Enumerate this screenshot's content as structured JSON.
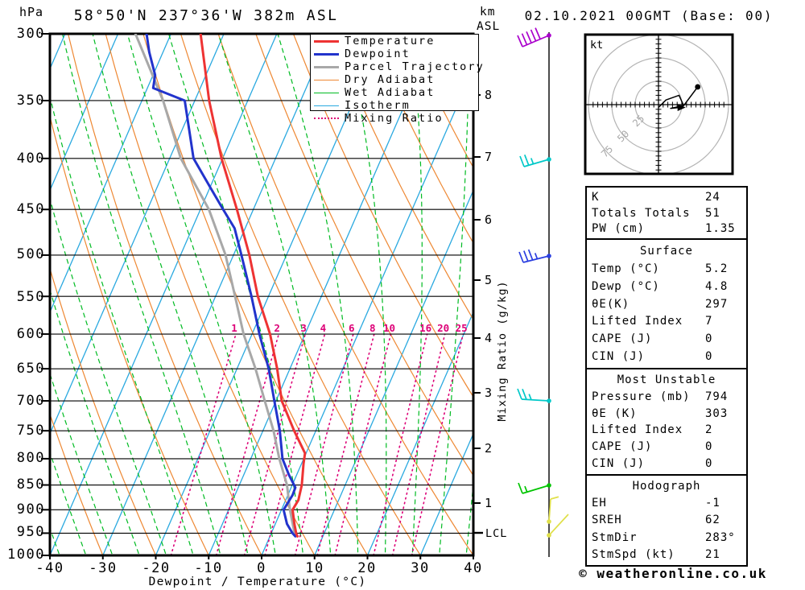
{
  "header": {
    "title": "58°50'N 237°36'W 382m ASL",
    "datetime": "02.10.2021 00GMT (Base: 00)"
  },
  "footer": {
    "credit": "© weatheronline.co.uk"
  },
  "axes": {
    "pressure_unit": "hPa",
    "pressure_ticks": [
      "300",
      "350",
      "400",
      "450",
      "500",
      "550",
      "600",
      "650",
      "700",
      "750",
      "800",
      "850",
      "900",
      "950",
      "1000"
    ],
    "temp_ticks": [
      "-40",
      "-30",
      "-20",
      "-10",
      "0",
      "10",
      "20",
      "30",
      "40"
    ],
    "x_label": "Dewpoint / Temperature (°C)",
    "km_unit_line1": "km",
    "km_unit_line2": "ASL",
    "km_ticks": [
      "8",
      "7",
      "6",
      "5",
      "4",
      "3",
      "2",
      "1"
    ],
    "lcl_label": "LCL",
    "mixing_axis_label": "Mixing Ratio (g/kg)",
    "mixing_ratio_labels": [
      "1",
      "2",
      "3",
      "4",
      "6",
      "8",
      "10",
      "16",
      "20",
      "25"
    ]
  },
  "legend": {
    "items": [
      {
        "label": "Temperature",
        "color": "#ee3333",
        "style": "thick-solid"
      },
      {
        "label": "Dewpoint",
        "color": "#2233cc",
        "style": "thick-solid"
      },
      {
        "label": "Parcel Trajectory",
        "color": "#a8a8a8",
        "style": "thick-solid"
      },
      {
        "label": "Dry Adiabat",
        "color": "#ee8833",
        "style": "thin-solid"
      },
      {
        "label": "Wet Adiabat",
        "color": "#00bb22",
        "style": "thin-dashed"
      },
      {
        "label": "Isotherm",
        "color": "#2aa9e0",
        "style": "thin-solid"
      },
      {
        "label": "Mixing Ratio",
        "color": "#dd0077",
        "style": "dotted"
      }
    ]
  },
  "chart_data": {
    "type": "skew-t-log-p-sounding",
    "pressure_axis_hpa": [
      300,
      1000
    ],
    "temp_axis_c": [
      -40,
      40
    ],
    "km_asl_ticks": [
      8,
      7,
      6,
      5,
      4,
      3,
      2,
      1
    ],
    "lcl_pressure_hpa": 950,
    "isotherm_step_c": 10,
    "dry_adiabat_step_c": 10,
    "wet_adiabat_step_c": 5,
    "mixing_ratio_lines_g_kg": [
      1,
      2,
      3,
      4,
      6,
      8,
      10,
      16,
      20,
      25
    ],
    "series": [
      {
        "name": "Temperature",
        "color": "#ee3333",
        "points_p_t": [
          [
            300,
            -54.4
          ],
          [
            350,
            -47.3
          ],
          [
            400,
            -40.2
          ],
          [
            450,
            -33.1
          ],
          [
            500,
            -27.0
          ],
          [
            550,
            -22.0
          ],
          [
            600,
            -16.6
          ],
          [
            650,
            -12.4
          ],
          [
            700,
            -8.9
          ],
          [
            750,
            -4.1
          ],
          [
            790,
            -0.2
          ],
          [
            810,
            0.4
          ],
          [
            850,
            1.8
          ],
          [
            880,
            2.4
          ],
          [
            900,
            2.1
          ],
          [
            930,
            3.6
          ],
          [
            950,
            4.7
          ],
          [
            957,
            5.2
          ]
        ]
      },
      {
        "name": "Dewpoint",
        "color": "#2233cc",
        "points_p_t": [
          [
            300,
            -64.6
          ],
          [
            313,
            -62.6
          ],
          [
            330,
            -59.6
          ],
          [
            340,
            -58.9
          ],
          [
            350,
            -51.9
          ],
          [
            400,
            -45.5
          ],
          [
            430,
            -39.5
          ],
          [
            450,
            -35.7
          ],
          [
            470,
            -32.0
          ],
          [
            500,
            -28.5
          ],
          [
            550,
            -23.2
          ],
          [
            600,
            -18.6
          ],
          [
            650,
            -14.0
          ],
          [
            700,
            -10.3
          ],
          [
            750,
            -6.8
          ],
          [
            800,
            -4.0
          ],
          [
            830,
            -1.5
          ],
          [
            855,
            0.8
          ],
          [
            870,
            0.9
          ],
          [
            900,
            0.4
          ],
          [
            930,
            2.2
          ],
          [
            950,
            4.0
          ],
          [
            957,
            4.8
          ]
        ]
      },
      {
        "name": "Parcel Trajectory",
        "color": "#a8a8a8",
        "points_p_t": [
          [
            300,
            -66.7
          ],
          [
            350,
            -56.0
          ],
          [
            400,
            -47.9
          ],
          [
            425,
            -43.0
          ],
          [
            450,
            -38.4
          ],
          [
            500,
            -31.5
          ],
          [
            550,
            -26.3
          ],
          [
            600,
            -21.6
          ],
          [
            650,
            -16.5
          ],
          [
            700,
            -12.1
          ],
          [
            750,
            -8.0
          ],
          [
            800,
            -4.6
          ],
          [
            850,
            -1.0
          ],
          [
            900,
            1.6
          ],
          [
            950,
            4.4
          ],
          [
            957,
            5.2
          ]
        ]
      }
    ],
    "wind_barbs": [
      {
        "color": "#aa00cc",
        "y": 44,
        "dx": -33,
        "dy": 14,
        "full": 5,
        "half": 0,
        "fx": -6,
        "fy": -14
      },
      {
        "color": "#00c8c8",
        "y": 198,
        "dx": -31,
        "dy": 9,
        "full": 2,
        "half": 1,
        "fx": -5,
        "fy": -13
      },
      {
        "color": "#2b3fe0",
        "y": 318,
        "dx": -32,
        "dy": 8,
        "full": 3,
        "half": 1,
        "fx": -5,
        "fy": -13
      },
      {
        "color": "#00c8c8",
        "y": 498,
        "dx": -34,
        "dy": -2,
        "full": 2,
        "half": 1,
        "fx": -5,
        "fy": -13
      },
      {
        "color": "#00c400",
        "y": 603,
        "dx": -33,
        "dy": 10,
        "full": 1,
        "half": 1,
        "fx": -5,
        "fy": -13
      },
      {
        "color": "#e0e04a",
        "y": 648,
        "dx": 2,
        "dy": -28,
        "full": 0,
        "half": 1,
        "fx": 18,
        "fy": -5
      },
      {
        "color": "#e0e04a",
        "y": 665,
        "dx": 24,
        "dy": -26,
        "full": 0,
        "half": 0,
        "fx": 0,
        "fy": 0
      }
    ],
    "hodograph": {
      "unit": "kt",
      "rings_kt": [
        "25",
        "50",
        "75"
      ],
      "trace_kt": [
        [
          0,
          3
        ],
        [
          8,
          -5
        ],
        [
          22,
          -10
        ],
        [
          27,
          1
        ],
        [
          13,
          4
        ],
        [
          23,
          3
        ]
      ],
      "branch_kt": [
        [
          27,
          1
        ],
        [
          42,
          -19
        ]
      ],
      "end_dot_kt": [
        42,
        -19
      ],
      "arrow_kt": [
        23,
        3
      ]
    }
  },
  "panels": [
    {
      "rows": [
        [
          "K",
          "24"
        ],
        [
          "Totals Totals",
          "51"
        ],
        [
          "PW (cm)",
          "1.35"
        ]
      ]
    },
    {
      "title": "Surface",
      "rows": [
        [
          "Temp (°C)",
          "5.2"
        ],
        [
          "Dewp (°C)",
          "4.8"
        ],
        [
          "θE(K)",
          "297"
        ],
        [
          "Lifted Index",
          "7"
        ],
        [
          "CAPE (J)",
          "0"
        ],
        [
          "CIN (J)",
          "0"
        ]
      ]
    },
    {
      "title": "Most Unstable",
      "rows": [
        [
          "Pressure (mb)",
          "794"
        ],
        [
          "θE (K)",
          "303"
        ],
        [
          "Lifted Index",
          "2"
        ],
        [
          "CAPE (J)",
          "0"
        ],
        [
          "CIN (J)",
          "0"
        ]
      ]
    },
    {
      "title": "Hodograph",
      "rows": [
        [
          "EH",
          "-1"
        ],
        [
          "SREH",
          "62"
        ],
        [
          "StmDir",
          "283°"
        ],
        [
          "StmSpd (kt)",
          "21"
        ]
      ]
    }
  ]
}
